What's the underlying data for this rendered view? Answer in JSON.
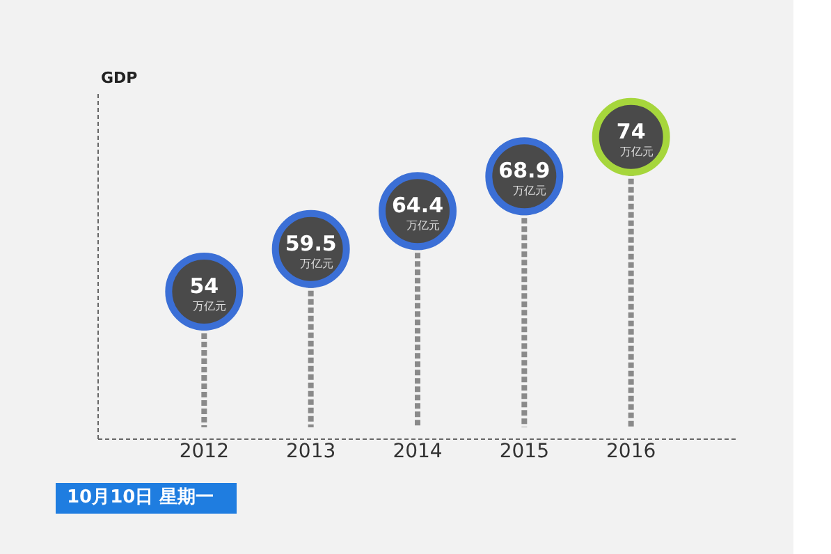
{
  "chart_data": {
    "type": "lollipop",
    "ylabel": "GDP",
    "categories": [
      "2012",
      "2013",
      "2014",
      "2015",
      "2016"
    ],
    "values": [
      54,
      59.5,
      64.4,
      68.9,
      74
    ],
    "colors": [
      "#3b6fd6",
      "#3b6fd6",
      "#3b6fd6",
      "#3b6fd6",
      "#a6d63c"
    ],
    "data_labels": true,
    "ylim": [
      35,
      80
    ],
    "tick_labels": "x",
    "marker": "circle",
    "line_style": "dashed",
    "annotations": [
      {
        "text": "万亿元",
        "x": "2012",
        "y": 54
      },
      {
        "text": "万亿元",
        "x": "2013",
        "y": 59.5
      },
      {
        "text": "万亿元",
        "x": "2014",
        "y": 64.4
      },
      {
        "text": "万亿元",
        "x": "2015",
        "y": 68.9
      },
      {
        "text": "万亿元",
        "x": "2016",
        "y": 74
      },
      "10月10日 星期一"
    ]
  }
}
